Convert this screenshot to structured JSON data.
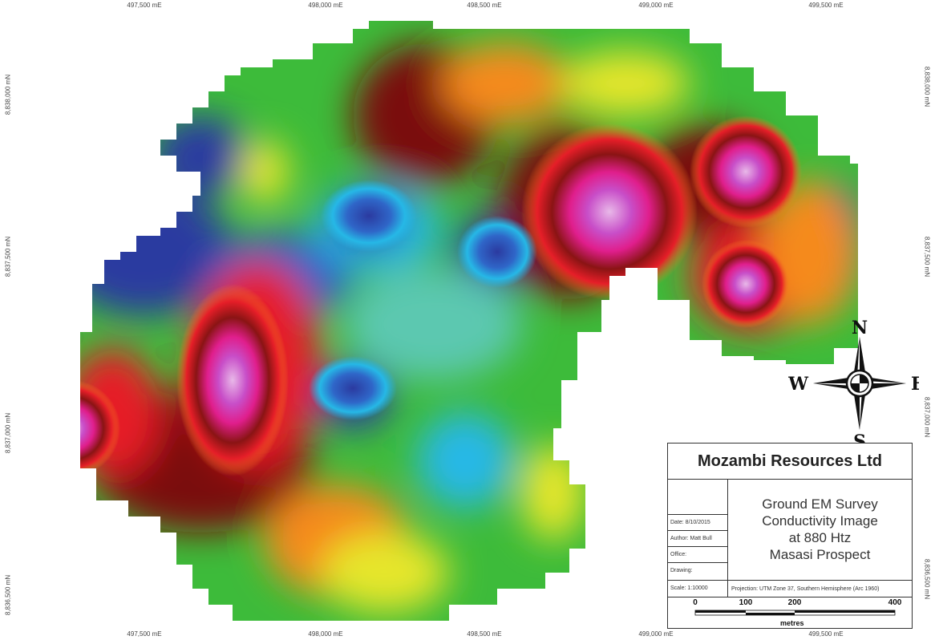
{
  "map": {
    "axes": {
      "easting_labels": [
        "497,500 mE",
        "498,000 mE",
        "498,500 mE",
        "499,000 mE",
        "499,500 mE"
      ],
      "northing_labels": [
        "8,838,000 mN",
        "8,837,500 mN",
        "8,837,000 mN",
        "8,836,500 mN"
      ]
    },
    "compass": {
      "n": "N",
      "s": "S",
      "e": "E",
      "w": "W"
    },
    "palette": [
      "#2b3aa0",
      "#26b8e6",
      "#3dbb3a",
      "#e6e62a",
      "#f58a1e",
      "#e61e28",
      "#7a1010",
      "#e01e8c",
      "#d9a3d9"
    ]
  },
  "title_block": {
    "company": "Mozambi Resources Ltd",
    "title_lines": [
      "Ground EM Survey",
      "Conductivity Image",
      "at 880 Htz",
      "Masasi Prospect"
    ],
    "date": "Date: 8/10/2015",
    "author": "Author: Matt Bull",
    "office": "Office:",
    "drawing": "Drawing:",
    "scale": "Scale: 1:10000",
    "projection": "Projection: UTM Zone 37, Southern Hemisphere (Arc 1960)",
    "scalebar": {
      "labels": [
        "0",
        "100",
        "200",
        "400"
      ],
      "unit": "metres"
    }
  }
}
